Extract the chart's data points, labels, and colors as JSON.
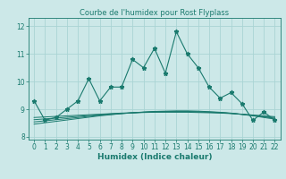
{
  "title": "Courbe de l'humidex pour Rost Flyplass",
  "xlabel": "Humidex (Indice chaleur)",
  "background_color": "#cce8e8",
  "grid_color": "#aad4d4",
  "line_color": "#1a7a6e",
  "xlim": [
    -0.5,
    22.5
  ],
  "ylim": [
    7.9,
    12.3
  ],
  "yticks": [
    8,
    9,
    10,
    11,
    12
  ],
  "xticks": [
    0,
    1,
    2,
    3,
    4,
    5,
    6,
    7,
    8,
    9,
    10,
    11,
    12,
    13,
    14,
    15,
    16,
    17,
    18,
    19,
    20,
    21,
    22
  ],
  "main_x": [
    0,
    1,
    2,
    3,
    4,
    5,
    6,
    7,
    8,
    9,
    10,
    11,
    12,
    13,
    14,
    15,
    16,
    17,
    18,
    19,
    20,
    21,
    22
  ],
  "main_y": [
    9.3,
    8.6,
    8.7,
    9.0,
    9.3,
    10.1,
    9.3,
    9.8,
    9.8,
    10.8,
    10.5,
    11.2,
    10.3,
    11.8,
    11.0,
    10.5,
    9.8,
    9.4,
    9.6,
    9.2,
    8.6,
    8.9,
    8.6
  ],
  "smooth_lines": [
    [
      8.7,
      8.72,
      8.74,
      8.76,
      8.78,
      8.8,
      8.82,
      8.84,
      8.86,
      8.87,
      8.88,
      8.89,
      8.89,
      8.89,
      8.89,
      8.88,
      8.87,
      8.86,
      8.84,
      8.82,
      8.79,
      8.76,
      8.73
    ],
    [
      8.62,
      8.65,
      8.68,
      8.71,
      8.74,
      8.77,
      8.8,
      8.83,
      8.85,
      8.87,
      8.89,
      8.9,
      8.91,
      8.91,
      8.91,
      8.9,
      8.89,
      8.87,
      8.85,
      8.82,
      8.78,
      8.74,
      8.7
    ],
    [
      8.54,
      8.58,
      8.62,
      8.66,
      8.7,
      8.74,
      8.78,
      8.81,
      8.84,
      8.87,
      8.89,
      8.91,
      8.92,
      8.92,
      8.92,
      8.91,
      8.9,
      8.88,
      8.85,
      8.81,
      8.77,
      8.72,
      8.67
    ],
    [
      8.46,
      8.51,
      8.56,
      8.61,
      8.66,
      8.71,
      8.76,
      8.8,
      8.84,
      8.87,
      8.9,
      8.92,
      8.93,
      8.94,
      8.94,
      8.93,
      8.91,
      8.89,
      8.86,
      8.81,
      8.76,
      8.7,
      8.64
    ]
  ],
  "title_fontsize": 6,
  "label_fontsize": 6.5,
  "tick_fontsize": 5.5
}
